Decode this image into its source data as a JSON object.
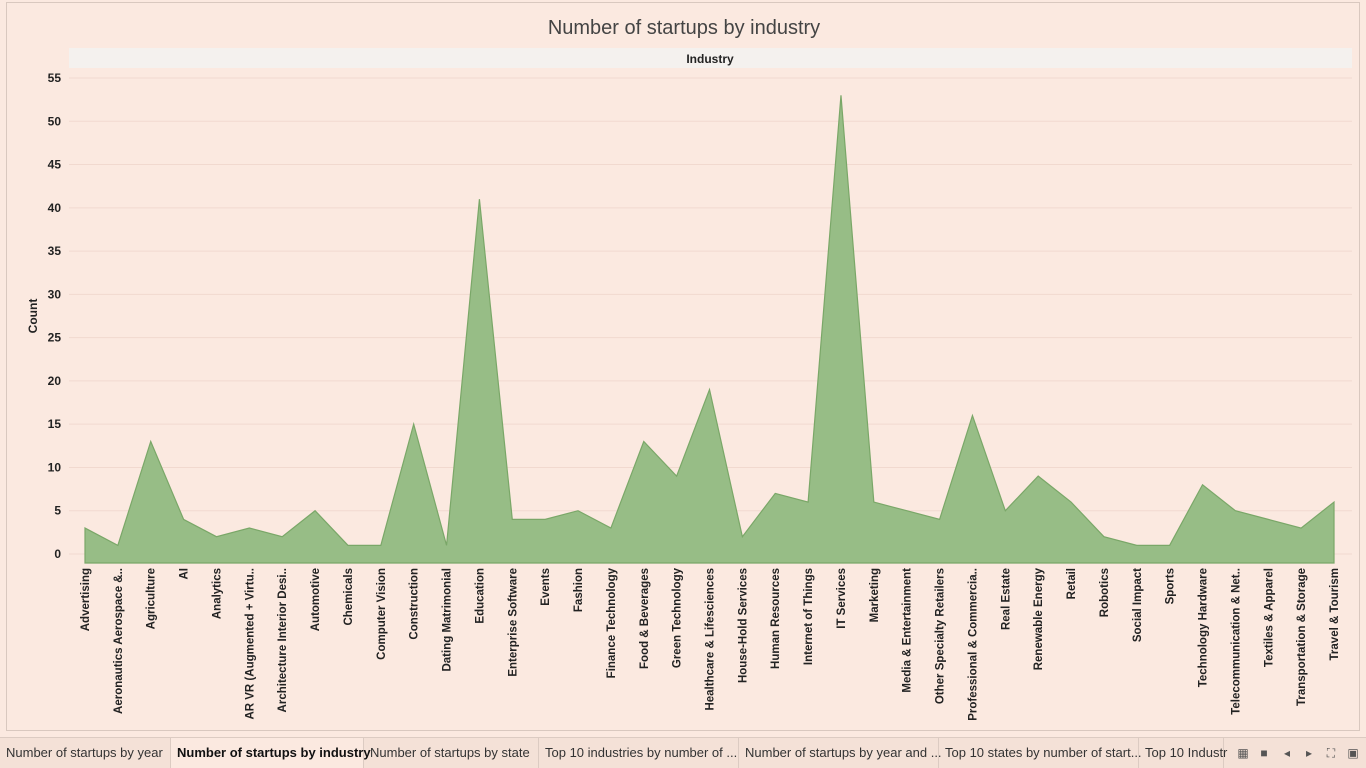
{
  "chart_data": {
    "type": "area",
    "title": "Number of startups by industry",
    "header_label": "Industry",
    "ylabel": "Count",
    "ylim": [
      0,
      55
    ],
    "yticks": [
      0,
      5,
      10,
      15,
      20,
      25,
      30,
      35,
      40,
      45,
      50,
      55
    ],
    "grid": true,
    "fill_color": "#97bd86",
    "line_color": "#7aa768",
    "categories": [
      "Advertising",
      "Aeronautics Aerospace &..",
      "Agriculture",
      "AI",
      "Analytics",
      "AR VR (Augmented + Virtu..",
      "Architecture Interior Desi..",
      "Automotive",
      "Chemicals",
      "Computer Vision",
      "Construction",
      "Dating Matrimonial",
      "Education",
      "Enterprise Software",
      "Events",
      "Fashion",
      "Finance Technology",
      "Food & Beverages",
      "Green Technology",
      "Healthcare & Lifesciences",
      "House-Hold Services",
      "Human Resources",
      "Internet of Things",
      "IT Services",
      "Marketing",
      "Media & Entertainment",
      "Other Specialty Retailers",
      "Professional & Commercia..",
      "Real Estate",
      "Renewable Energy",
      "Retail",
      "Robotics",
      "Social Impact",
      "Sports",
      "Technology Hardware",
      "Telecommunication & Net..",
      "Textiles & Apparel",
      "Transportation & Storage",
      "Travel & Tourism"
    ],
    "values": [
      3,
      1,
      13,
      4,
      2,
      3,
      2,
      5,
      1,
      1,
      15,
      1,
      41,
      4,
      4,
      5,
      3,
      13,
      9,
      19,
      2,
      7,
      6,
      53,
      6,
      5,
      4,
      16,
      5,
      9,
      6,
      2,
      1,
      1,
      8,
      5,
      4,
      3,
      6
    ]
  },
  "tabs": [
    {
      "label": "Number of startups by year",
      "active": false
    },
    {
      "label": "Number of startups by industry",
      "active": true
    },
    {
      "label": "Number of startups by state",
      "active": false
    },
    {
      "label": "Top 10 industries by number of ...",
      "active": false
    },
    {
      "label": "Number of startups by year and ...",
      "active": false
    },
    {
      "label": "Top 10 states by number of start...",
      "active": false
    },
    {
      "label": "Top 10 Industr",
      "active": false
    }
  ],
  "controls": [
    {
      "name": "grid-view-icon",
      "glyph": "▦"
    },
    {
      "name": "single-view-icon",
      "glyph": "■"
    },
    {
      "name": "prev-tab-icon",
      "glyph": "◂"
    },
    {
      "name": "next-tab-icon",
      "glyph": "▸"
    },
    {
      "name": "fullscreen-icon",
      "glyph": "⛶"
    },
    {
      "name": "presentation-icon",
      "glyph": "▣"
    }
  ]
}
